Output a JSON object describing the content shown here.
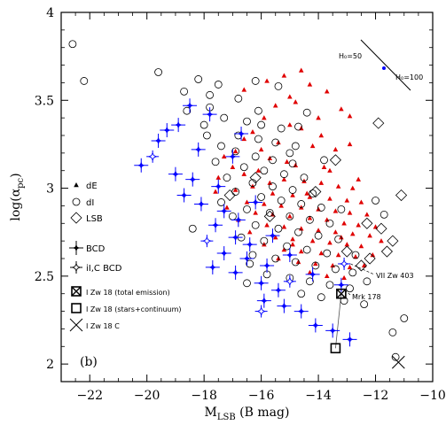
{
  "chart_data": {
    "type": "scatter",
    "xlabel": "M",
    "xlabel_sub": "LSB",
    "xlabel_unit": " (B mag)",
    "ylabel_main": "log(α",
    "ylabel_sub": "pc",
    "ylabel_close": ")",
    "xlim": [
      -23,
      -10
    ],
    "ylim": [
      1.9,
      4.0
    ],
    "xticks": [
      -22,
      -20,
      -18,
      -16,
      -14,
      -12,
      -10
    ],
    "xtick_labels": [
      "−22",
      "−20",
      "−18",
      "−16",
      "−14",
      "−12",
      "−10"
    ],
    "yticks": [
      2,
      2.5,
      3,
      3.5,
      4
    ],
    "ytick_labels": [
      "2",
      "2.5",
      "3",
      "3.5",
      "4"
    ],
    "panel_label": "(b)",
    "colors": {
      "dE": "#e00000",
      "dI": "#000000",
      "LSB": "#000000",
      "BCD": "#0000ff",
      "axis": "#000000"
    },
    "legend": [
      {
        "key": "dE",
        "label": "dE",
        "marker": "triangle"
      },
      {
        "key": "dI",
        "label": "dI",
        "marker": "circle"
      },
      {
        "key": "LSB",
        "label": "LSB",
        "marker": "diamond"
      },
      {
        "key": "BCD",
        "label": "BCD",
        "marker": "star-filled"
      },
      {
        "key": "iLBCD",
        "label": "iI,C BCD",
        "marker": "star-open"
      },
      {
        "key": "izw_total",
        "label": "I Zw 18 (total emission)",
        "marker": "square-x"
      },
      {
        "key": "izw_stars",
        "label": "I Zw 18 (stars+continuum)",
        "marker": "square-open"
      },
      {
        "key": "izw_c",
        "label": "I Zw 18 C",
        "marker": "x"
      }
    ],
    "h0_annotation": {
      "label_50": "H₀=50",
      "label_100": "H₀=100"
    },
    "object_labels": [
      {
        "text": "VII Zw 403",
        "x": -13.0,
        "y": 2.58
      },
      {
        "text": "Mrk 178",
        "x": -13.2,
        "y": 2.4
      }
    ],
    "series": [
      {
        "name": "dE",
        "marker": "triangle",
        "color": "#e00000",
        "points": [
          [
            -14.6,
            3.67
          ],
          [
            -15.2,
            3.64
          ],
          [
            -15.8,
            3.61
          ],
          [
            -14.3,
            3.59
          ],
          [
            -13.7,
            3.55
          ],
          [
            -16.6,
            3.56
          ],
          [
            -15.0,
            3.52
          ],
          [
            -14.8,
            3.49
          ],
          [
            -15.5,
            3.47
          ],
          [
            -13.2,
            3.45
          ],
          [
            -12.9,
            3.41
          ],
          [
            -15.9,
            3.4
          ],
          [
            -15.0,
            3.36
          ],
          [
            -14.6,
            3.34
          ],
          [
            -16.3,
            3.32
          ],
          [
            -13.9,
            3.3
          ],
          [
            -16.6,
            3.28
          ],
          [
            -15.4,
            3.26
          ],
          [
            -14.2,
            3.24
          ],
          [
            -13.4,
            3.22
          ],
          [
            -12.9,
            3.25
          ],
          [
            -16.9,
            3.21
          ],
          [
            -17.3,
            3.18
          ],
          [
            -15.7,
            3.17
          ],
          [
            -15.1,
            3.15
          ],
          [
            -14.8,
            3.13
          ],
          [
            -13.8,
            3.12
          ],
          [
            -16.1,
            3.1
          ],
          [
            -16.6,
            3.08
          ],
          [
            -17.5,
            3.06
          ],
          [
            -15.2,
            3.05
          ],
          [
            -14.5,
            3.04
          ],
          [
            -13.9,
            3.03
          ],
          [
            -13.3,
            3.01
          ],
          [
            -12.8,
            3.0
          ],
          [
            -16.3,
            3.01
          ],
          [
            -16.9,
            2.99
          ],
          [
            -15.6,
            2.97
          ],
          [
            -14.9,
            2.96
          ],
          [
            -14.3,
            2.95
          ],
          [
            -13.6,
            2.94
          ],
          [
            -13.0,
            2.93
          ],
          [
            -12.5,
            2.92
          ],
          [
            -17.6,
            2.98
          ],
          [
            -16.5,
            2.92
          ],
          [
            -15.9,
            2.91
          ],
          [
            -15.3,
            2.9
          ],
          [
            -14.6,
            2.89
          ],
          [
            -14.0,
            2.88
          ],
          [
            -13.4,
            2.87
          ],
          [
            -12.9,
            2.86
          ],
          [
            -12.3,
            2.85
          ],
          [
            -17.2,
            2.89
          ],
          [
            -16.2,
            2.86
          ],
          [
            -15.6,
            2.85
          ],
          [
            -15.0,
            2.84
          ],
          [
            -14.3,
            2.83
          ],
          [
            -13.7,
            2.82
          ],
          [
            -13.1,
            2.8
          ],
          [
            -12.6,
            2.79
          ],
          [
            -16.8,
            2.82
          ],
          [
            -15.8,
            2.79
          ],
          [
            -15.2,
            2.78
          ],
          [
            -14.6,
            2.77
          ],
          [
            -14.0,
            2.76
          ],
          [
            -13.4,
            2.75
          ],
          [
            -12.8,
            2.74
          ],
          [
            -12.2,
            2.73
          ],
          [
            -16.4,
            2.75
          ],
          [
            -15.5,
            2.72
          ],
          [
            -14.9,
            2.71
          ],
          [
            -14.2,
            2.7
          ],
          [
            -13.6,
            2.69
          ],
          [
            -13.0,
            2.68
          ],
          [
            -12.5,
            2.67
          ],
          [
            -15.9,
            2.68
          ],
          [
            -15.2,
            2.65
          ],
          [
            -14.6,
            2.64
          ],
          [
            -13.9,
            2.63
          ],
          [
            -13.3,
            2.62
          ],
          [
            -12.7,
            2.61
          ],
          [
            -15.4,
            2.6
          ],
          [
            -14.7,
            2.58
          ],
          [
            -14.1,
            2.57
          ],
          [
            -13.5,
            2.56
          ],
          [
            -12.9,
            2.55
          ],
          [
            -14.3,
            2.52
          ],
          [
            -13.7,
            2.5
          ],
          [
            -13.1,
            2.49
          ],
          [
            -12.4,
            2.56
          ],
          [
            -12.1,
            2.62
          ],
          [
            -11.8,
            2.7
          ],
          [
            -17.0,
            3.12
          ],
          [
            -16.0,
            3.22
          ],
          [
            -14.0,
            3.4
          ],
          [
            -13.6,
            3.1
          ],
          [
            -12.6,
            3.05
          ],
          [
            -14.9,
            2.68
          ],
          [
            -15.7,
            3.03
          ],
          [
            -13.2,
            2.72
          ],
          [
            -14.4,
            2.97
          ],
          [
            -12.0,
            2.78
          ]
        ]
      },
      {
        "name": "dI",
        "marker": "circle",
        "color": "#000000",
        "points": [
          [
            -22.6,
            3.82
          ],
          [
            -22.2,
            3.61
          ],
          [
            -19.6,
            3.66
          ],
          [
            -18.2,
            3.62
          ],
          [
            -17.5,
            3.59
          ],
          [
            -16.2,
            3.61
          ],
          [
            -15.4,
            3.58
          ],
          [
            -18.7,
            3.55
          ],
          [
            -17.8,
            3.53
          ],
          [
            -16.8,
            3.51
          ],
          [
            -14.4,
            3.43
          ],
          [
            -16.1,
            3.44
          ],
          [
            -18.6,
            3.44
          ],
          [
            -17.3,
            3.4
          ],
          [
            -16.5,
            3.38
          ],
          [
            -16.0,
            3.36
          ],
          [
            -15.3,
            3.34
          ],
          [
            -18.0,
            3.36
          ],
          [
            -17.9,
            3.3
          ],
          [
            -16.8,
            3.3
          ],
          [
            -16.1,
            3.28
          ],
          [
            -15.5,
            3.26
          ],
          [
            -14.8,
            3.24
          ],
          [
            -17.4,
            3.24
          ],
          [
            -16.9,
            3.21
          ],
          [
            -16.2,
            3.18
          ],
          [
            -15.6,
            3.16
          ],
          [
            -14.9,
            3.14
          ],
          [
            -13.8,
            3.16
          ],
          [
            -17.6,
            3.15
          ],
          [
            -16.6,
            3.12
          ],
          [
            -15.9,
            3.1
          ],
          [
            -15.2,
            3.08
          ],
          [
            -14.5,
            3.06
          ],
          [
            -17.2,
            3.06
          ],
          [
            -16.3,
            3.03
          ],
          [
            -15.6,
            3.01
          ],
          [
            -14.9,
            2.99
          ],
          [
            -14.2,
            2.97
          ],
          [
            -16.9,
            2.98
          ],
          [
            -16.0,
            2.95
          ],
          [
            -15.3,
            2.93
          ],
          [
            -14.6,
            2.91
          ],
          [
            -13.9,
            2.89
          ],
          [
            -17.4,
            2.92
          ],
          [
            -16.5,
            2.88
          ],
          [
            -15.7,
            2.86
          ],
          [
            -15.0,
            2.84
          ],
          [
            -14.3,
            2.82
          ],
          [
            -13.6,
            2.8
          ],
          [
            -16.2,
            2.79
          ],
          [
            -15.4,
            2.77
          ],
          [
            -14.7,
            2.75
          ],
          [
            -14.0,
            2.73
          ],
          [
            -13.3,
            2.71
          ],
          [
            -16.7,
            2.72
          ],
          [
            -15.9,
            2.7
          ],
          [
            -15.1,
            2.67
          ],
          [
            -14.4,
            2.65
          ],
          [
            -13.7,
            2.63
          ],
          [
            -16.3,
            2.62
          ],
          [
            -15.5,
            2.6
          ],
          [
            -14.8,
            2.58
          ],
          [
            -14.1,
            2.56
          ],
          [
            -13.4,
            2.54
          ],
          [
            -12.8,
            2.52
          ],
          [
            -15.8,
            2.51
          ],
          [
            -15.0,
            2.49
          ],
          [
            -14.3,
            2.47
          ],
          [
            -13.6,
            2.45
          ],
          [
            -12.9,
            2.43
          ],
          [
            -14.6,
            2.4
          ],
          [
            -13.9,
            2.38
          ],
          [
            -13.1,
            2.36
          ],
          [
            -12.4,
            2.34
          ],
          [
            -16.5,
            2.46
          ],
          [
            -11.0,
            2.26
          ],
          [
            -11.4,
            2.18
          ],
          [
            -11.3,
            2.04
          ],
          [
            -18.4,
            2.77
          ],
          [
            -12.0,
            2.93
          ],
          [
            -11.7,
            2.85
          ],
          [
            -12.7,
            2.62
          ],
          [
            -17.8,
            3.46
          ],
          [
            -14.7,
            3.35
          ],
          [
            -16.4,
            2.57
          ],
          [
            -13.2,
            2.88
          ],
          [
            -15.0,
            3.2
          ],
          [
            -17.0,
            2.84
          ],
          [
            -12.3,
            2.47
          ]
        ]
      },
      {
        "name": "LSB",
        "marker": "diamond",
        "color": "#000000",
        "points": [
          [
            -11.9,
            3.37
          ],
          [
            -11.1,
            2.96
          ],
          [
            -12.3,
            2.8
          ],
          [
            -11.8,
            2.77
          ],
          [
            -11.4,
            2.7
          ],
          [
            -11.6,
            2.64
          ],
          [
            -12.2,
            2.6
          ],
          [
            -13.0,
            2.64
          ],
          [
            -12.5,
            2.56
          ],
          [
            -13.4,
            3.16
          ],
          [
            -17.1,
            2.96
          ],
          [
            -15.7,
            2.84
          ],
          [
            -14.1,
            2.98
          ],
          [
            -16.2,
            3.06
          ]
        ]
      },
      {
        "name": "BCD",
        "marker": "star-filled",
        "color": "#0000ff",
        "points": [
          [
            -20.2,
            3.13
          ],
          [
            -19.6,
            3.27
          ],
          [
            -19.3,
            3.33
          ],
          [
            -18.5,
            3.47
          ],
          [
            -17.8,
            3.42
          ],
          [
            -18.2,
            3.22
          ],
          [
            -19.0,
            3.08
          ],
          [
            -18.4,
            3.05
          ],
          [
            -17.5,
            3.01
          ],
          [
            -18.1,
            2.91
          ],
          [
            -17.3,
            2.87
          ],
          [
            -16.8,
            2.82
          ],
          [
            -17.6,
            2.79
          ],
          [
            -16.9,
            2.72
          ],
          [
            -16.4,
            2.68
          ],
          [
            -17.3,
            2.63
          ],
          [
            -16.5,
            2.6
          ],
          [
            -15.8,
            2.56
          ],
          [
            -16.9,
            2.52
          ],
          [
            -16.0,
            2.46
          ],
          [
            -15.4,
            2.42
          ],
          [
            -15.9,
            2.36
          ],
          [
            -15.2,
            2.33
          ],
          [
            -14.6,
            2.3
          ],
          [
            -14.1,
            2.22
          ],
          [
            -13.5,
            2.19
          ],
          [
            -12.9,
            2.14
          ],
          [
            -18.7,
            2.96
          ],
          [
            -17.0,
            3.18
          ],
          [
            -16.2,
            2.92
          ],
          [
            -15.6,
            2.73
          ],
          [
            -15.0,
            2.62
          ],
          [
            -14.2,
            2.51
          ],
          [
            -16.7,
            3.31
          ],
          [
            -18.9,
            3.36
          ],
          [
            -17.7,
            2.55
          ],
          [
            -13.2,
            2.45
          ]
        ]
      },
      {
        "name": "iI,C BCD",
        "marker": "star-open",
        "color": "#0000ff",
        "points": [
          [
            -13.1,
            2.57
          ],
          [
            -17.9,
            2.7
          ],
          [
            -16.0,
            2.3
          ],
          [
            -15.0,
            2.47
          ],
          [
            -19.8,
            3.18
          ]
        ]
      },
      {
        "name": "I Zw 18 (total emission)",
        "marker": "square-x",
        "color": "#000000",
        "points": [
          [
            -13.2,
            2.4
          ]
        ]
      },
      {
        "name": "I Zw 18 (stars+continuum)",
        "marker": "square-open",
        "color": "#000000",
        "points": [
          [
            -13.4,
            2.09
          ]
        ]
      },
      {
        "name": "I Zw 18 C",
        "marker": "x",
        "color": "#000000",
        "points": [
          [
            -11.2,
            2.01
          ]
        ]
      }
    ]
  }
}
